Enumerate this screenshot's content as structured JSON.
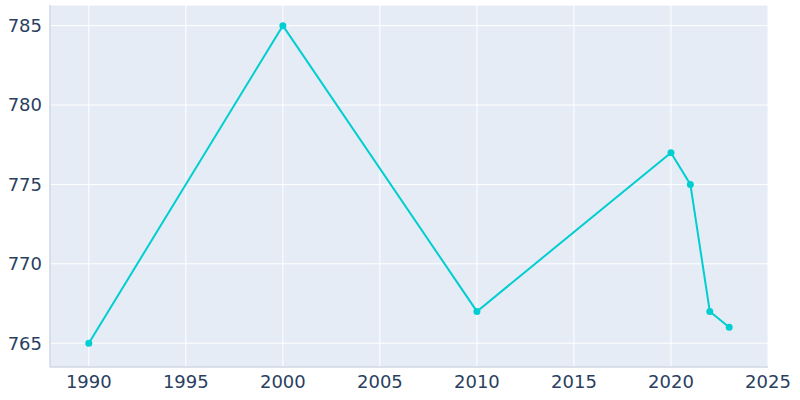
{
  "chart_data": {
    "type": "line",
    "x": [
      1990,
      2000,
      2010,
      2020,
      2021,
      2022,
      2023
    ],
    "values": [
      765,
      785,
      767,
      777,
      775,
      767,
      766
    ],
    "color": "#00ced1",
    "marker": "circle",
    "xlim": [
      1988,
      2025
    ],
    "ylim": [
      763.5,
      786.3
    ],
    "xticks": [
      1990,
      1995,
      2000,
      2005,
      2010,
      2015,
      2020,
      2025
    ],
    "yticks": [
      765,
      770,
      775,
      780,
      785
    ],
    "grid": true
  }
}
